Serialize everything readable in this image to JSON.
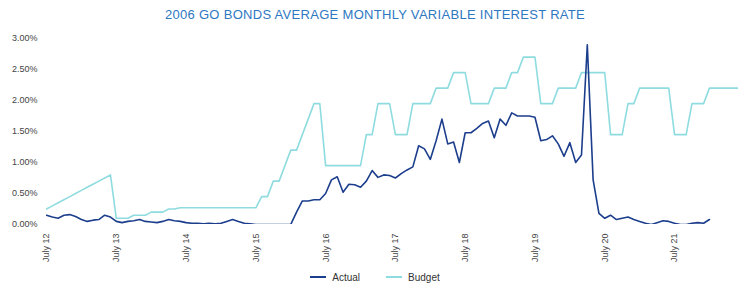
{
  "chart_data": {
    "type": "line",
    "title": "2006 GO BONDS AVERAGE MONTHLY VARIABLE INTEREST RATE",
    "categories": [
      "July 12",
      null,
      null,
      null,
      null,
      null,
      null,
      null,
      null,
      null,
      null,
      null,
      "July 13",
      null,
      null,
      null,
      null,
      null,
      null,
      null,
      null,
      null,
      null,
      null,
      "July 14",
      null,
      null,
      null,
      null,
      null,
      null,
      null,
      null,
      null,
      null,
      null,
      "July 15",
      null,
      null,
      null,
      null,
      null,
      null,
      null,
      null,
      null,
      null,
      null,
      "July 16",
      null,
      null,
      null,
      null,
      null,
      null,
      null,
      null,
      null,
      null,
      null,
      "July 17",
      null,
      null,
      null,
      null,
      null,
      null,
      null,
      null,
      null,
      null,
      null,
      "July 18",
      null,
      null,
      null,
      null,
      null,
      null,
      null,
      null,
      null,
      null,
      null,
      "July 19",
      null,
      null,
      null,
      null,
      null,
      null,
      null,
      null,
      null,
      null,
      null,
      "July 20",
      null,
      null,
      null,
      null,
      null,
      null,
      null,
      null,
      null,
      null,
      null,
      "July 21",
      null,
      null,
      null,
      null,
      null,
      null,
      null,
      null,
      null,
      null,
      null
    ],
    "series": [
      {
        "name": "Actual",
        "color": "#1c3e8c",
        "values": [
          0.15,
          0.12,
          0.1,
          0.15,
          0.16,
          0.13,
          0.08,
          0.05,
          0.07,
          0.08,
          0.15,
          0.12,
          0.05,
          0.03,
          0.05,
          0.06,
          0.08,
          0.05,
          0.04,
          0.03,
          0.05,
          0.08,
          0.06,
          0.05,
          0.03,
          0.02,
          0.02,
          0.01,
          0.02,
          0.01,
          0.02,
          0.05,
          0.08,
          0.05,
          0.02,
          0.01,
          0,
          0,
          0,
          0,
          0,
          0,
          0,
          0.2,
          0.38,
          0.38,
          0.4,
          0.4,
          0.5,
          0.72,
          0.77,
          0.52,
          0.65,
          0.64,
          0.6,
          0.7,
          0.87,
          0.76,
          0.8,
          0.79,
          0.75,
          0.82,
          0.88,
          0.93,
          1.27,
          1.22,
          1.05,
          1.35,
          1.7,
          1.3,
          1.33,
          1.0,
          1.48,
          1.48,
          1.55,
          1.63,
          1.67,
          1.4,
          1.7,
          1.6,
          1.8,
          1.75,
          1.75,
          1.75,
          1.73,
          1.35,
          1.37,
          1.43,
          1.3,
          1.1,
          1.32,
          1.0,
          1.12,
          2.9,
          0.72,
          0.18,
          0.1,
          0.15,
          0.08,
          0.1,
          0.12,
          0.08,
          0.05,
          0.02,
          0,
          0.03,
          0.06,
          0.05,
          0.02,
          0,
          0,
          0.02,
          0.03,
          0.02,
          0.08,
          null,
          null,
          null,
          null,
          null
        ]
      },
      {
        "name": "Budget",
        "color": "#8fdce0",
        "values": [
          0.25,
          0.3,
          0.35,
          0.4,
          0.45,
          0.5,
          0.55,
          0.6,
          0.65,
          0.7,
          0.75,
          0.8,
          0.1,
          0.1,
          0.1,
          0.15,
          0.15,
          0.15,
          0.2,
          0.2,
          0.2,
          0.25,
          0.25,
          0.27,
          0.27,
          0.27,
          0.27,
          0.27,
          0.27,
          0.27,
          0.27,
          0.27,
          0.27,
          0.27,
          0.27,
          0.27,
          0.27,
          0.45,
          0.45,
          0.7,
          0.7,
          0.95,
          1.2,
          1.2,
          1.45,
          1.7,
          1.95,
          1.95,
          0.95,
          0.95,
          0.95,
          0.95,
          0.95,
          0.95,
          0.95,
          1.45,
          1.45,
          1.95,
          1.95,
          1.95,
          1.45,
          1.45,
          1.45,
          1.95,
          1.95,
          1.95,
          1.95,
          2.2,
          2.2,
          2.2,
          2.45,
          2.45,
          2.45,
          1.95,
          1.95,
          1.95,
          1.95,
          2.2,
          2.2,
          2.2,
          2.45,
          2.45,
          2.7,
          2.7,
          2.7,
          1.95,
          1.95,
          1.95,
          2.2,
          2.2,
          2.2,
          2.2,
          2.45,
          2.45,
          2.45,
          2.45,
          2.45,
          1.45,
          1.45,
          1.45,
          1.95,
          1.95,
          2.2,
          2.2,
          2.2,
          2.2,
          2.2,
          2.2,
          1.45,
          1.45,
          1.45,
          1.95,
          1.95,
          1.95,
          2.2,
          2.2,
          2.2,
          2.2,
          2.2,
          2.2
        ]
      }
    ],
    "ylim": [
      0,
      3
    ],
    "yticks": [
      {
        "value": 0,
        "label": "0.00%"
      },
      {
        "value": 0.5,
        "label": "0.50%"
      },
      {
        "value": 1,
        "label": "1.00%"
      },
      {
        "value": 1.5,
        "label": "1.50%"
      },
      {
        "value": 2,
        "label": "2.00%"
      },
      {
        "value": 2.5,
        "label": "2.50%"
      },
      {
        "value": 3,
        "label": "3.00%"
      }
    ],
    "grid": false,
    "legend": "bottom"
  }
}
